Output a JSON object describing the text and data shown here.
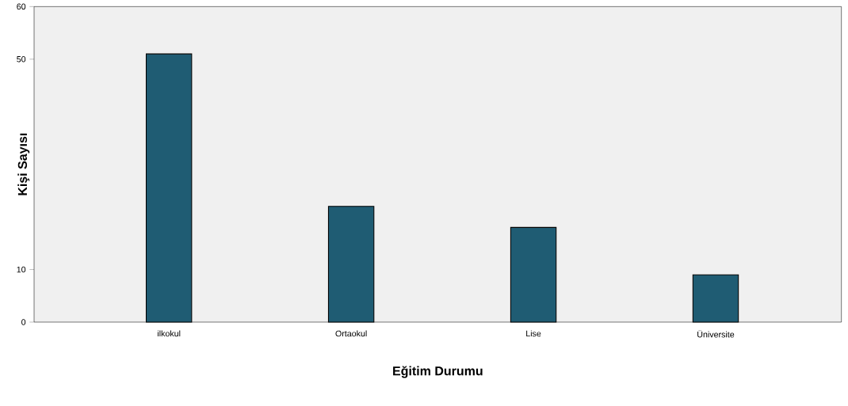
{
  "chart_data": {
    "type": "bar",
    "xlabel": "Eğitim Durumu",
    "ylabel": "Kişi Sayısı",
    "categories": [
      "ilkokul",
      "Ortaokul",
      "Lise",
      "Üniversite"
    ],
    "values": [
      51,
      22,
      18,
      9
    ],
    "color": "#1f5c73",
    "ylim": [
      0,
      60
    ],
    "yticks": [
      0,
      10,
      50,
      60
    ],
    "grid": false
  }
}
